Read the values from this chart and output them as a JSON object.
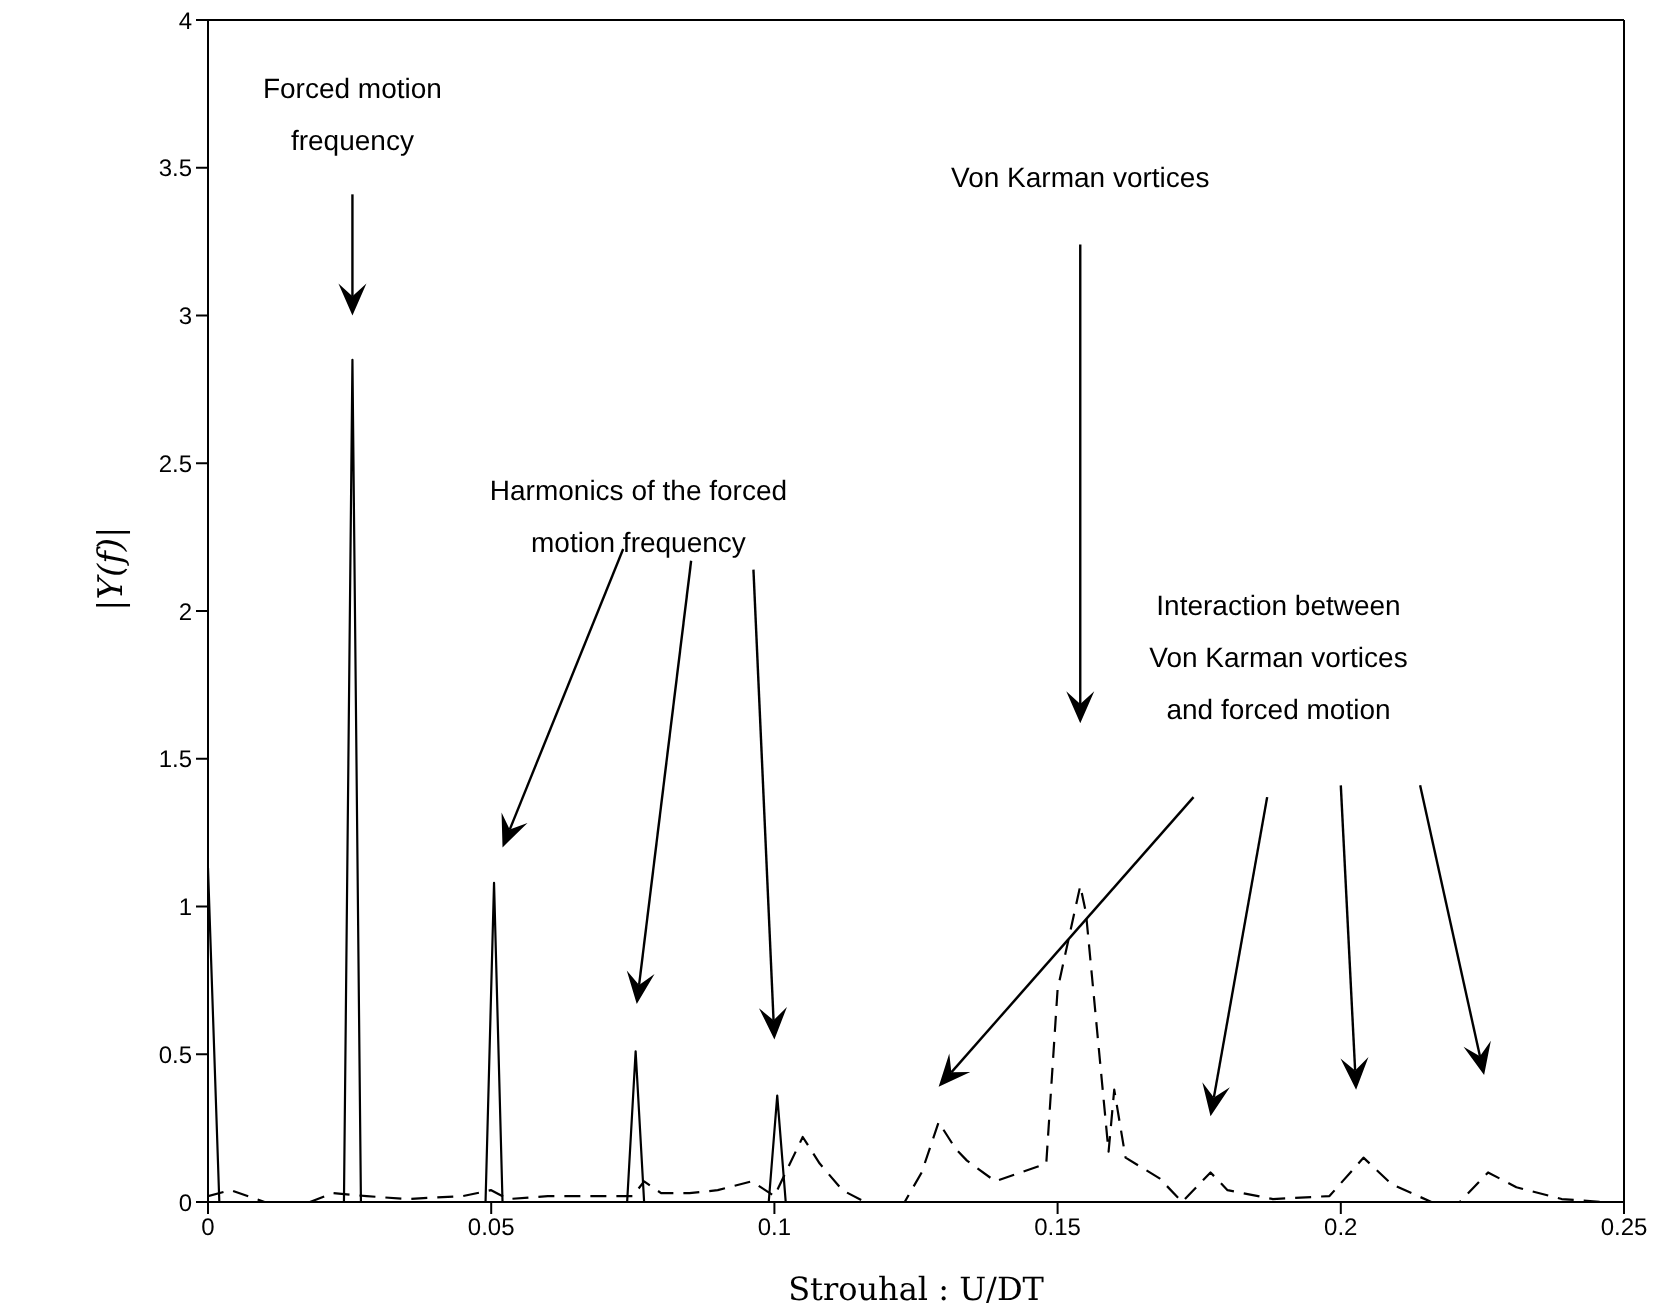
{
  "chart_data": {
    "type": "line",
    "xlabel": "Strouhal : U/DT",
    "ylabel": "|Y(f)|",
    "xlim": [
      0,
      0.25
    ],
    "ylim": [
      0,
      4
    ],
    "xticks": [
      0,
      0.05,
      0.1,
      0.15,
      0.2,
      0.25
    ],
    "yticks": [
      0,
      0.5,
      1,
      1.5,
      2,
      2.5,
      3,
      3.5,
      4
    ],
    "grid": false,
    "marker": "none",
    "series": [
      {
        "color": "#000000",
        "line_style": "solid",
        "x": [
          0,
          0.002,
          0.024,
          0.0255,
          0.027,
          0.049,
          0.0505,
          0.052,
          0.074,
          0.0755,
          0.077,
          0.099,
          0.1005,
          0.102,
          0.25
        ],
        "values": [
          1.13,
          0,
          0,
          2.85,
          0,
          0,
          1.08,
          0,
          0,
          0.51,
          0,
          0,
          0.36,
          0,
          0
        ]
      },
      {
        "color": "#000000",
        "line_style": "dashed",
        "x": [
          0,
          0.004,
          0.01,
          0.018,
          0.022,
          0.028,
          0.035,
          0.045,
          0.05,
          0.053,
          0.06,
          0.07,
          0.075,
          0.077,
          0.08,
          0.085,
          0.09,
          0.096,
          0.1,
          0.102,
          0.105,
          0.108,
          0.112,
          0.116,
          0.12,
          0.123,
          0.126,
          0.129,
          0.132,
          0.134,
          0.139,
          0.148,
          0.15,
          0.154,
          0.155,
          0.159,
          0.16,
          0.162,
          0.168,
          0.172,
          0.177,
          0.18,
          0.188,
          0.198,
          0.204,
          0.209,
          0.216,
          0.221,
          0.226,
          0.231,
          0.239,
          0.246,
          0.25
        ],
        "values": [
          0.02,
          0.04,
          0,
          0,
          0.03,
          0.02,
          0.01,
          0.02,
          0.04,
          0.01,
          0.02,
          0.02,
          0.02,
          0.07,
          0.03,
          0.03,
          0.04,
          0.07,
          0.02,
          0.1,
          0.22,
          0.13,
          0.04,
          0,
          0,
          0,
          0.1,
          0.27,
          0.18,
          0.14,
          0.07,
          0.13,
          0.72,
          1.07,
          0.98,
          0.17,
          0.38,
          0.15,
          0.08,
          0,
          0.1,
          0.04,
          0.01,
          0.02,
          0.15,
          0.06,
          0,
          0,
          0.1,
          0.05,
          0.01,
          0,
          0
        ]
      }
    ],
    "annotations": [
      "Forced motion\nfrequency",
      "Harmonics of the forced\nmotion frequency",
      "Von Karman vortices",
      "Interaction between\nVon Karman vortices\nand forced motion"
    ]
  }
}
